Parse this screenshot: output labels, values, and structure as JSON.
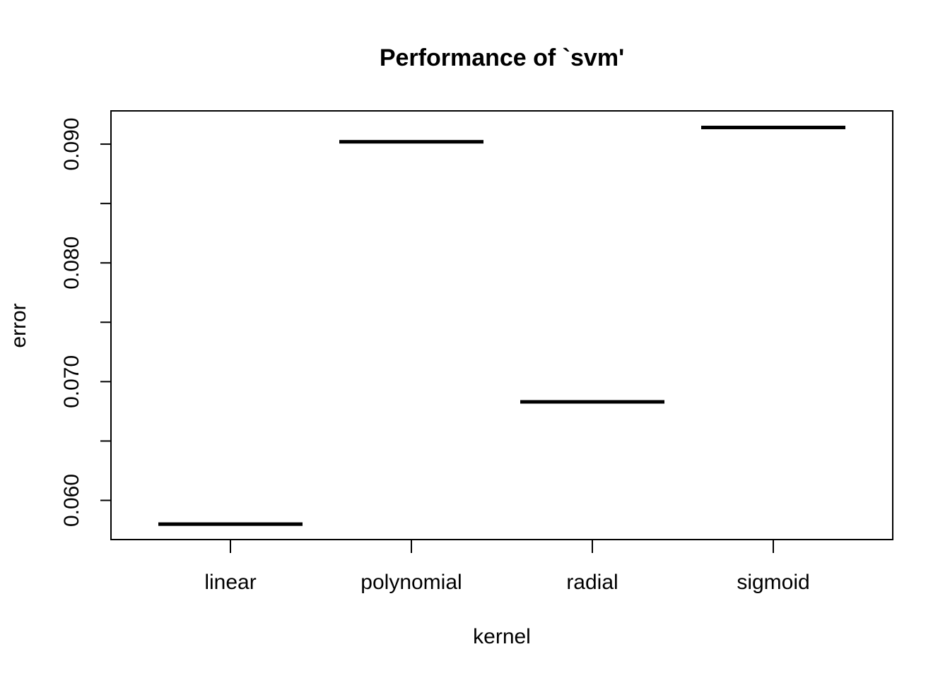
{
  "chart_data": {
    "type": "line",
    "title": "Performance of `svm'",
    "xlabel": "kernel",
    "ylabel": "error",
    "categories": [
      "linear",
      "polynomial",
      "radial",
      "sigmoid"
    ],
    "series": [
      {
        "values": [
          0.058,
          0.0902,
          0.0683,
          0.0914
        ]
      }
    ],
    "yticks": [
      0.06,
      0.065,
      0.07,
      0.075,
      0.08,
      0.085,
      0.09
    ],
    "ytick_labels": [
      "0.060",
      "",
      "0.070",
      "",
      "0.080",
      "",
      "0.090"
    ],
    "ylim": [
      0.0567,
      0.0928
    ],
    "grid": false,
    "legend": "none",
    "colors": {
      "line": "#000000",
      "frame": "#000000",
      "background": "#ffffff"
    }
  }
}
